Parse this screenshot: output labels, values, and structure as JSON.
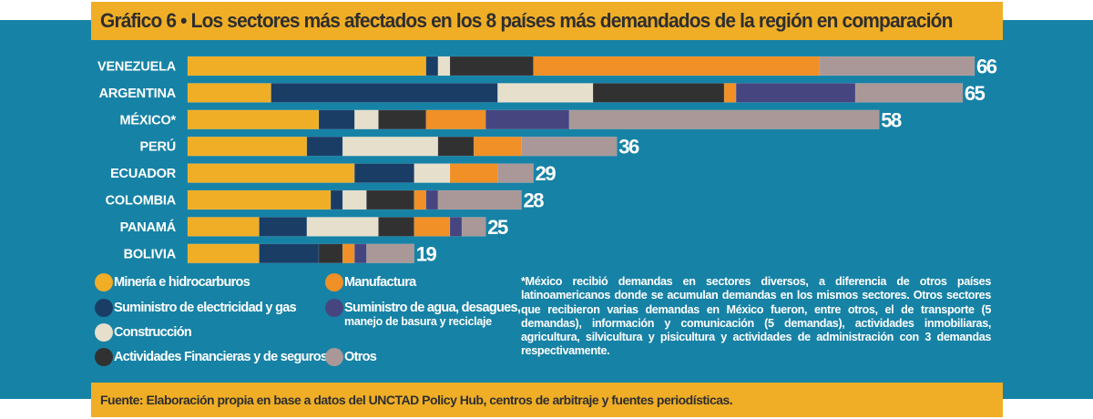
{
  "title": "Gráfico 6 • Los sectores más afectados en los 8 países más demandados de la región en comparación",
  "footer": "Fuente: Elaboración propia en base a datos del UNCTAD Policy Hub, centros de arbitraje y fuentes periodísticas.",
  "note": "*México recibió demandas en sectores diversos, a diferencia de otros países latinoamericanos donde se acumulan demandas en los mismos sectores. Otros sectores que recibieron varias demandas en México fueron, entre otros, el de transporte (5 demandas), información y comunicación (5 demandas), actividades inmobiliaras, agricultura, silvicultura y pisicultura y actividades de administración con 3 demandas respectivamente.",
  "colors": {
    "background": "#1682a6",
    "banner": "#f0ae26"
  },
  "chart_data": {
    "type": "bar",
    "orientation": "horizontal",
    "stacked": true,
    "title": "Gráfico 6 • Los sectores más afectados en los 8 países más demandados de la región en comparación",
    "xlabel": "",
    "ylabel": "",
    "categories": [
      "VENEZUELA",
      "ARGENTINA",
      "MÉXICO*",
      "PERÚ",
      "ECUADOR",
      "COLOMBIA",
      "PANAMÁ",
      "BOLIVIA"
    ],
    "totals": [
      66,
      65,
      58,
      36,
      29,
      28,
      25,
      19
    ],
    "xlim": [
      0,
      66
    ],
    "grid": false,
    "legend_position": "bottom-left",
    "series": [
      {
        "name": "Minería e hidrocarburos",
        "color": "#f0ae26",
        "values": [
          20,
          7,
          11,
          10,
          14,
          12,
          6,
          6
        ]
      },
      {
        "name": "Suministro de electricidad y gas",
        "color": "#1a3d66",
        "values": [
          1,
          19,
          3,
          3,
          5,
          1,
          4,
          5
        ]
      },
      {
        "name": "Construcción",
        "color": "#e6dfcc",
        "values": [
          1,
          8,
          2,
          8,
          3,
          2,
          6,
          0
        ]
      },
      {
        "name": "Actividades Financieras y de seguros",
        "color": "#323132",
        "values": [
          7,
          11,
          4,
          3,
          0,
          4,
          3,
          2
        ]
      },
      {
        "name": "Manufactura",
        "color": "#f09026",
        "values": [
          24,
          1,
          5,
          4,
          4,
          1,
          3,
          1
        ]
      },
      {
        "name": "Suministro de agua, desagues, manejo de basura y reciclaje",
        "color": "#47457f",
        "values": [
          0,
          10,
          7,
          0,
          0,
          1,
          1,
          1
        ]
      },
      {
        "name": "Otros",
        "color": "#a99897",
        "values": [
          13,
          9,
          26,
          8,
          3,
          7,
          2,
          4
        ]
      }
    ]
  },
  "legend": [
    {
      "line1": "Minería e hidrocarburos",
      "line2": "",
      "color": "#f0ae26"
    },
    {
      "line1": "Suministro de electricidad y gas",
      "line2": "",
      "color": "#1a3d66"
    },
    {
      "line1": "Construcción",
      "line2": "",
      "color": "#e6dfcc"
    },
    {
      "line1": "Actividades Financieras y de seguros",
      "line2": "",
      "color": "#323132"
    },
    {
      "line1": "Manufactura",
      "line2": "",
      "color": "#f09026"
    },
    {
      "line1": "Suministro de agua, desagues,",
      "line2": "manejo de basura y reciclaje",
      "color": "#47457f"
    },
    {
      "line1": "Otros",
      "line2": "",
      "color": "#a99897"
    }
  ]
}
